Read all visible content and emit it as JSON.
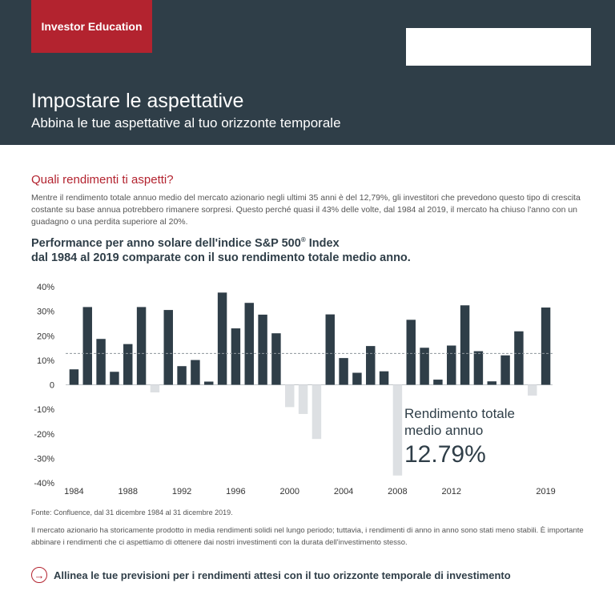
{
  "header": {
    "badge": "Investor Education",
    "title": "Impostare le aspettative",
    "subtitle": "Abbina le tue aspettative al tuo orizzonte temporale"
  },
  "section": {
    "title": "Quali rendimenti ti aspetti?",
    "intro": "Mentre il rendimento totale annuo medio del mercato azionario negli ultimi 35 anni è del 12,79%, gli investitori che prevedono questo tipo di crescita costante su base annua potrebbero rimanere sorpresi. Questo perché quasi il 43% delle volte, dal 1984 al 2019, il mercato ha chiuso l'anno con un guadagno o una perdita superiore al 20%."
  },
  "chart_title": {
    "line1_pre": "Performance per anno solare dell'indice S&P 500",
    "line1_sup": "®",
    "line1_post": " Index",
    "line2": "dal 1984 al 2019 comparate con il suo rendimento totale medio anno."
  },
  "chart_data": {
    "type": "bar",
    "x": [
      1984,
      1985,
      1986,
      1987,
      1988,
      1989,
      1990,
      1991,
      1992,
      1993,
      1994,
      1995,
      1996,
      1997,
      1998,
      1999,
      2000,
      2001,
      2002,
      2003,
      2004,
      2005,
      2006,
      2007,
      2008,
      2009,
      2010,
      2011,
      2012,
      2013,
      2014,
      2015,
      2016,
      2017,
      2018,
      2019
    ],
    "values": [
      6.3,
      31.7,
      18.7,
      5.3,
      16.6,
      31.7,
      -3.1,
      30.5,
      7.6,
      10.1,
      1.3,
      37.6,
      23.0,
      33.4,
      28.6,
      21.0,
      -9.1,
      -11.9,
      -22.1,
      28.7,
      10.9,
      4.9,
      15.8,
      5.5,
      -37.0,
      26.5,
      15.1,
      2.1,
      16.0,
      32.4,
      13.7,
      1.4,
      12.0,
      21.8,
      -4.4,
      31.5
    ],
    "average": 12.79,
    "yticks": [
      "40%",
      "30%",
      "20%",
      "10%",
      "0",
      "-10%",
      "-20%",
      "-30%",
      "-40%"
    ],
    "ylim": [
      -40,
      40
    ],
    "xtick_labels": [
      "1984",
      "1988",
      "1992",
      "1996",
      "2000",
      "2004",
      "2008",
      "2012",
      "2019"
    ],
    "positive_color": "#2f3e48",
    "negative_color": "#dde0e3",
    "average_line_color": "#8e969c"
  },
  "callout": {
    "label": "Rendimento totale medio annuo",
    "value": "12.79%"
  },
  "source": "Fonte: Confluence, dal 31 dicembre 1984 al 31 dicembre 2019.",
  "note": "Il mercato azionario ha storicamente prodotto in media rendimenti solidi nel lungo periodo; tuttavia, i rendimenti di anno in anno sono stati meno stabili. È importante abbinare i rendimenti che ci aspettiamo di ottenere dai nostri investimenti con la durata dell'investimento stesso.",
  "cta": {
    "icon": "arrow-right-circle-icon",
    "text": "Allinea le tue previsioni per i rendimenti attesi con il tuo orizzonte temporale di investimento"
  },
  "colors": {
    "header_bg": "#2f3e48",
    "accent": "#b3232f"
  }
}
